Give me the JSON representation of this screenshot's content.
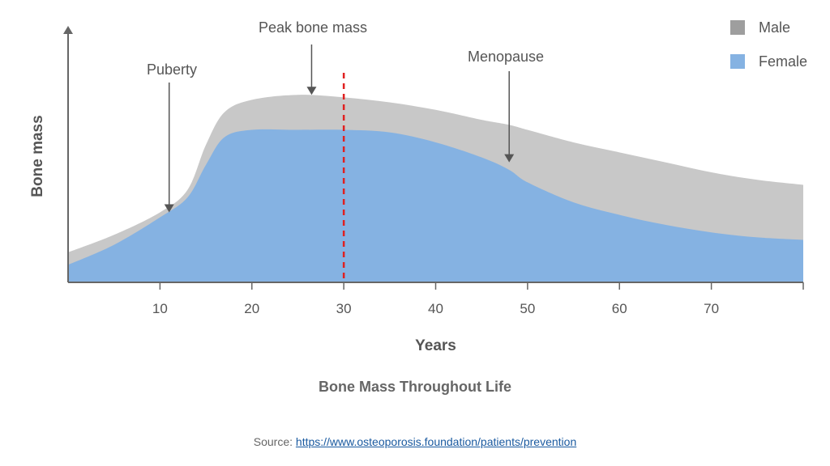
{
  "chart_data": {
    "type": "area",
    "xlabel": "Years",
    "ylabel": "Bone mass",
    "xlim": [
      0,
      80
    ],
    "ylim": [
      0,
      100
    ],
    "x_ticks": [
      10,
      20,
      30,
      40,
      50,
      60,
      70
    ],
    "x_tick_labels": [
      "10",
      "20",
      "30",
      "40",
      "50",
      "60",
      "70"
    ],
    "x": [
      0,
      5,
      10,
      13,
      15,
      17,
      20,
      25,
      30,
      35,
      40,
      45,
      48,
      50,
      55,
      60,
      65,
      70,
      75,
      80
    ],
    "series": [
      {
        "name": "Male",
        "color": "#c8c8c8",
        "legend_color": "#9e9e9e",
        "values": [
          12,
          19,
          28,
          37,
          55,
          68,
          73,
          75,
          74,
          72,
          69,
          65,
          63,
          61,
          56,
          52,
          48,
          44,
          41,
          39
        ]
      },
      {
        "name": "Female",
        "color": "#85b2e2",
        "legend_color": "#85b2e2",
        "values": [
          7,
          15,
          26,
          34,
          47,
          58,
          61,
          61,
          61,
          60,
          56,
          50,
          45,
          40,
          32,
          27,
          23,
          20,
          18,
          17
        ]
      }
    ],
    "reference_line": {
      "x": 30,
      "color": "#e02020",
      "style": "dashed"
    },
    "annotations": [
      {
        "label": "Puberty",
        "x": 11,
        "y": 28
      },
      {
        "label": "Peak bone mass",
        "x": 26.5,
        "y": 75
      },
      {
        "label": "Menopause",
        "x": 48,
        "y": 48
      }
    ],
    "legend_position": "top-right",
    "grid": false,
    "caption": "Bone Mass Throughout Life"
  },
  "source": {
    "label": "Source:",
    "url_text": "https://www.osteoporosis.foundation/patients/prevention"
  }
}
